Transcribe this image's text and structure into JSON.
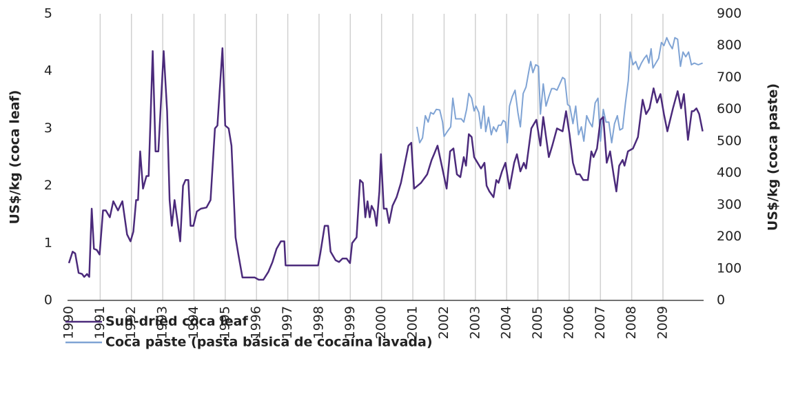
{
  "chart_data": {
    "type": "line",
    "ylabel": "US$/kg (coca leaf)",
    "y2label": "US$/kg (coca paste)",
    "xlim": [
      1990,
      2010.3
    ],
    "xticks": [
      1990,
      1991,
      1992,
      1993,
      1994,
      1995,
      1996,
      1997,
      1998,
      1999,
      2000,
      2001,
      2002,
      2003,
      2004,
      2005,
      2006,
      2007,
      2008,
      2009
    ],
    "ylim": [
      0,
      5
    ],
    "yticks": [
      0,
      1,
      2,
      3,
      4,
      5
    ],
    "y2lim": [
      0,
      900
    ],
    "y2ticks": [
      0,
      100,
      200,
      300,
      400,
      500,
      600,
      700,
      800,
      900
    ],
    "grid": "x",
    "legend": "bottom-left",
    "series": [
      {
        "name": "Sun-dried coca leaf",
        "color": "#4b2a7b",
        "x": [
          1990.0,
          1990.12,
          1990.2,
          1990.31,
          1990.42,
          1990.49,
          1990.58,
          1990.65,
          1990.73,
          1990.8,
          1990.89,
          1990.98,
          1991.09,
          1991.18,
          1991.31,
          1991.42,
          1991.57,
          1991.71,
          1991.86,
          1991.97,
          1992.06,
          1992.15,
          1992.21,
          1992.28,
          1992.37,
          1992.48,
          1992.55,
          1992.68,
          1992.77,
          1992.86,
          1993.03,
          1993.14,
          1993.22,
          1993.29,
          1993.38,
          1993.47,
          1993.56,
          1993.65,
          1993.73,
          1993.82,
          1993.89,
          1993.98,
          1994.09,
          1994.22,
          1994.4,
          1994.53,
          1994.67,
          1994.75,
          1994.91,
          1995.0,
          1995.11,
          1995.2,
          1995.33,
          1995.42,
          1995.55,
          1995.94,
          1996.07,
          1996.22,
          1996.38,
          1996.51,
          1996.64,
          1996.78,
          1996.89,
          1996.93,
          1997.97,
          1998.04,
          1998.18,
          1998.29,
          1998.37,
          1998.53,
          1998.64,
          1998.75,
          1998.88,
          1998.99,
          1999.06,
          1999.2,
          1999.31,
          1999.4,
          1999.48,
          1999.55,
          1999.62,
          1999.68,
          1999.77,
          1999.84,
          1999.93,
          1999.98,
          2000.07,
          2000.16,
          2000.24,
          2000.35,
          2000.48,
          2000.62,
          2000.75,
          2000.86,
          2000.95,
          2001.04,
          2001.26,
          2001.46,
          2001.6,
          2001.68,
          2001.79,
          2002.08,
          2002.19,
          2002.3,
          2002.41,
          2002.52,
          2002.63,
          2002.7,
          2002.79,
          2002.88,
          2002.96,
          2003.07,
          2003.18,
          2003.29,
          2003.36,
          2003.45,
          2003.58,
          2003.67,
          2003.74,
          2003.85,
          2003.96,
          2004.09,
          2004.24,
          2004.33,
          2004.44,
          2004.55,
          2004.62,
          2004.79,
          2004.95,
          2005.08,
          2005.17,
          2005.35,
          2005.46,
          2005.61,
          2005.79,
          2005.9,
          2006.01,
          2006.12,
          2006.23,
          2006.34,
          2006.45,
          2006.6,
          2006.71,
          2006.78,
          2006.89,
          2007.0,
          2007.09,
          2007.2,
          2007.31,
          2007.42,
          2007.51,
          2007.6,
          2007.71,
          2007.77,
          2007.88,
          2008.04,
          2008.2,
          2008.35,
          2008.46,
          2008.57,
          2008.7,
          2008.81,
          2008.92,
          2009.03,
          2009.14,
          2009.32,
          2009.47,
          2009.58,
          2009.67,
          2009.8,
          2009.92,
          2009.98,
          2010.07,
          2010.16,
          2010.27
        ],
        "values": [
          0.65,
          0.85,
          0.82,
          0.48,
          0.46,
          0.41,
          0.46,
          0.41,
          1.6,
          0.9,
          0.88,
          0.8,
          1.57,
          1.57,
          1.45,
          1.73,
          1.57,
          1.73,
          1.15,
          1.03,
          1.2,
          1.75,
          1.75,
          2.6,
          1.95,
          2.17,
          2.17,
          4.35,
          2.6,
          2.6,
          4.35,
          3.3,
          1.75,
          1.3,
          1.75,
          1.4,
          1.03,
          2.0,
          2.1,
          2.1,
          1.3,
          1.3,
          1.55,
          1.6,
          1.62,
          1.75,
          3.0,
          3.05,
          4.4,
          3.05,
          3.0,
          2.7,
          1.1,
          0.8,
          0.4,
          0.4,
          0.36,
          0.36,
          0.5,
          0.67,
          0.9,
          1.03,
          1.03,
          0.61,
          0.61,
          0.82,
          1.3,
          1.3,
          0.85,
          0.7,
          0.67,
          0.73,
          0.73,
          0.65,
          1.0,
          1.1,
          2.1,
          2.05,
          1.45,
          1.73,
          1.45,
          1.65,
          1.55,
          1.3,
          1.9,
          2.55,
          1.6,
          1.6,
          1.35,
          1.65,
          1.8,
          2.05,
          2.4,
          2.7,
          2.75,
          1.95,
          2.05,
          2.2,
          2.45,
          2.55,
          2.7,
          1.95,
          2.6,
          2.65,
          2.2,
          2.15,
          2.5,
          2.35,
          2.9,
          2.85,
          2.5,
          2.4,
          2.3,
          2.4,
          2.0,
          1.9,
          1.8,
          2.1,
          2.05,
          2.25,
          2.4,
          1.95,
          2.4,
          2.55,
          2.25,
          2.4,
          2.3,
          3.0,
          3.15,
          2.7,
          3.2,
          2.5,
          2.7,
          3.0,
          2.95,
          3.3,
          2.9,
          2.4,
          2.2,
          2.2,
          2.1,
          2.1,
          2.6,
          2.5,
          2.65,
          3.15,
          3.2,
          2.4,
          2.6,
          2.2,
          1.9,
          2.35,
          2.45,
          2.35,
          2.6,
          2.65,
          2.85,
          3.5,
          3.25,
          3.35,
          3.7,
          3.45,
          3.6,
          3.25,
          2.95,
          3.35,
          3.65,
          3.35,
          3.6,
          2.8,
          3.3,
          3.3,
          3.35,
          3.25,
          2.95
        ]
      },
      {
        "name": "Coca paste (pasta básica de cocaína lavada)",
        "color": "#7fa3d4",
        "axis": "y2",
        "x": [
          2001.13,
          2001.22,
          2001.31,
          2001.4,
          2001.49,
          2001.57,
          2001.66,
          2001.75,
          2001.86,
          2001.95,
          2002.0,
          2002.1,
          2002.21,
          2002.28,
          2002.37,
          2002.46,
          2002.55,
          2002.63,
          2002.72,
          2002.79,
          2002.88,
          2002.96,
          2003.02,
          2003.11,
          2003.18,
          2003.27,
          2003.33,
          2003.42,
          2003.51,
          2003.58,
          2003.67,
          2003.74,
          2003.82,
          2003.89,
          2003.96,
          2004.02,
          2004.09,
          2004.18,
          2004.27,
          2004.36,
          2004.44,
          2004.53,
          2004.62,
          2004.71,
          2004.77,
          2004.84,
          2004.93,
          2005.02,
          2005.08,
          2005.17,
          2005.26,
          2005.35,
          2005.44,
          2005.52,
          2005.61,
          2005.7,
          2005.79,
          2005.86,
          2005.95,
          2006.02,
          2006.12,
          2006.21,
          2006.3,
          2006.39,
          2006.47,
          2006.56,
          2006.65,
          2006.74,
          2006.83,
          2006.92,
          2007.0,
          2007.09,
          2007.18,
          2007.27,
          2007.36,
          2007.45,
          2007.54,
          2007.62,
          2007.71,
          2007.8,
          2007.89,
          2007.95,
          2008.04,
          2008.13,
          2008.22,
          2008.31,
          2008.4,
          2008.48,
          2008.55,
          2008.62,
          2008.68,
          2008.77,
          2008.86,
          2008.95,
          2009.03,
          2009.12,
          2009.21,
          2009.3,
          2009.38,
          2009.47,
          2009.56,
          2009.64,
          2009.73,
          2009.82,
          2009.91,
          2010.0,
          2010.13,
          2010.27
        ],
        "values": [
          545,
          495,
          510,
          580,
          560,
          590,
          585,
          600,
          598,
          560,
          515,
          530,
          545,
          635,
          570,
          570,
          570,
          560,
          600,
          650,
          635,
          595,
          610,
          590,
          540,
          610,
          530,
          575,
          520,
          545,
          530,
          550,
          550,
          565,
          560,
          495,
          610,
          640,
          660,
          590,
          545,
          650,
          670,
          720,
          750,
          715,
          740,
          735,
          585,
          680,
          610,
          640,
          665,
          665,
          660,
          680,
          700,
          695,
          615,
          610,
          555,
          610,
          520,
          545,
          500,
          580,
          560,
          545,
          620,
          635,
          500,
          600,
          560,
          560,
          495,
          555,
          580,
          535,
          540,
          620,
          690,
          780,
          740,
          750,
          725,
          745,
          760,
          770,
          745,
          790,
          730,
          745,
          760,
          810,
          800,
          825,
          805,
          790,
          825,
          820,
          735,
          780,
          765,
          780,
          740,
          745,
          740,
          745
        ]
      }
    ]
  }
}
